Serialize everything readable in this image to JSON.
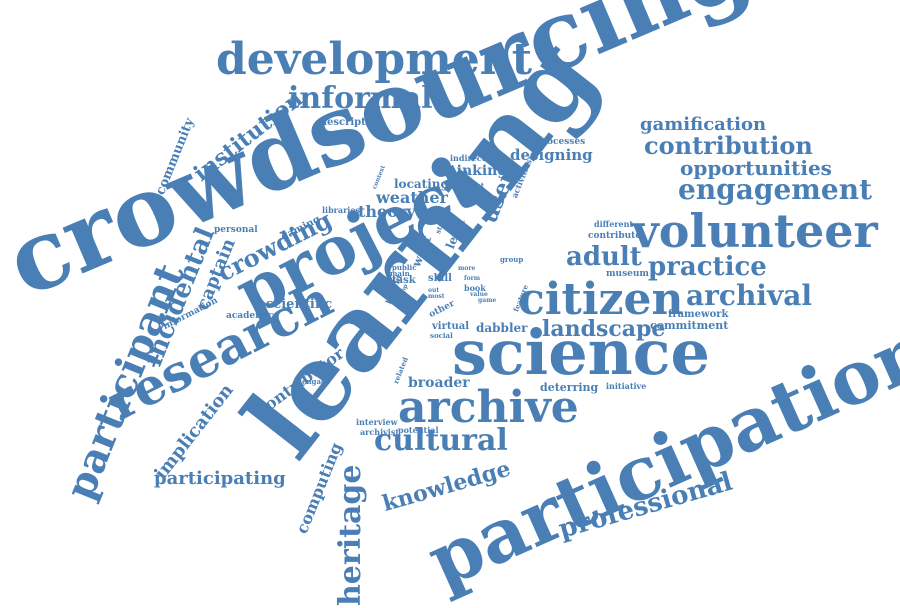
{
  "accent_color": "#4a7fb5",
  "words": [
    "crowdsourcing",
    "learning",
    "participation",
    "project",
    "science",
    "research",
    "volunteer",
    "citizen",
    "archive",
    "development",
    "participant",
    "informal",
    "cultural",
    "heritage",
    "engagement",
    "archival",
    "practice",
    "contribution",
    "opportunities",
    "gamification",
    "adult",
    "landscape",
    "crowding",
    "incidental",
    "institution",
    "professional",
    "knowledge",
    "participating",
    "implication",
    "contributor",
    "community",
    "captain",
    "theory",
    "weather",
    "user",
    "computing",
    "broader",
    "designing",
    "scientific",
    "framework",
    "commitment",
    "deterring",
    "dabbler",
    "processes",
    "description",
    "thinking",
    "locating",
    "information",
    "academic",
    "personal",
    "gaming",
    "libraries",
    "indirect",
    "content",
    "activities",
    "different",
    "contribute",
    "museum",
    "group",
    "level",
    "want",
    "studies",
    "skill",
    "task",
    "book",
    "form",
    "value",
    "game",
    "more",
    "most",
    "out",
    "public",
    "main",
    "benefit",
    "drop",
    "feature",
    "other",
    "related",
    "social",
    "virtual",
    "potential",
    "archivist",
    "interview",
    "engage",
    "initiative",
    "context"
  ]
}
